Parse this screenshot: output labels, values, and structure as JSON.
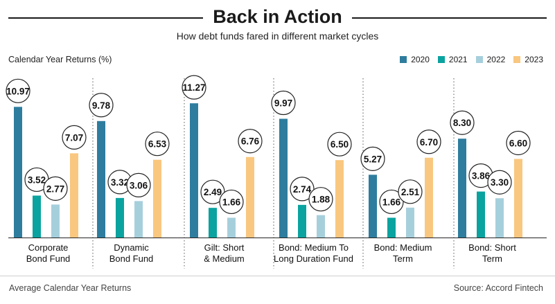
{
  "header": {
    "title": "Back in Action",
    "subtitle": "How debt funds fared in different market cycles"
  },
  "footer": {
    "note": "Average Calendar Year Returns",
    "source": "Source: Accord Fintech"
  },
  "chart_data": {
    "type": "bar",
    "ylabel": "Calendar Year Returns (%)",
    "xlabel": "",
    "ylim": [
      0,
      12
    ],
    "grid": false,
    "legend_position": "top-right",
    "categories": [
      [
        "Corporate",
        "Bond Fund"
      ],
      [
        "Dynamic",
        "Bond Fund"
      ],
      [
        "Gilt: Short",
        "& Medium"
      ],
      [
        "Bond: Medium To",
        "Long Duration Fund"
      ],
      [
        "Bond: Medium",
        "Term"
      ],
      [
        "Bond: Short",
        "Term"
      ]
    ],
    "series": [
      {
        "name": "2020",
        "color": "#2e7d9e",
        "values": [
          10.97,
          9.78,
          11.27,
          9.97,
          5.27,
          8.3
        ]
      },
      {
        "name": "2021",
        "color": "#0aa3a0",
        "values": [
          3.52,
          3.32,
          2.49,
          2.74,
          1.66,
          3.86
        ]
      },
      {
        "name": "2022",
        "color": "#a6cfdc",
        "values": [
          2.77,
          3.06,
          1.66,
          1.88,
          2.51,
          3.3
        ]
      },
      {
        "name": "2023",
        "color": "#f9c77f",
        "values": [
          7.07,
          6.53,
          6.76,
          6.5,
          6.7,
          6.6
        ]
      }
    ]
  }
}
